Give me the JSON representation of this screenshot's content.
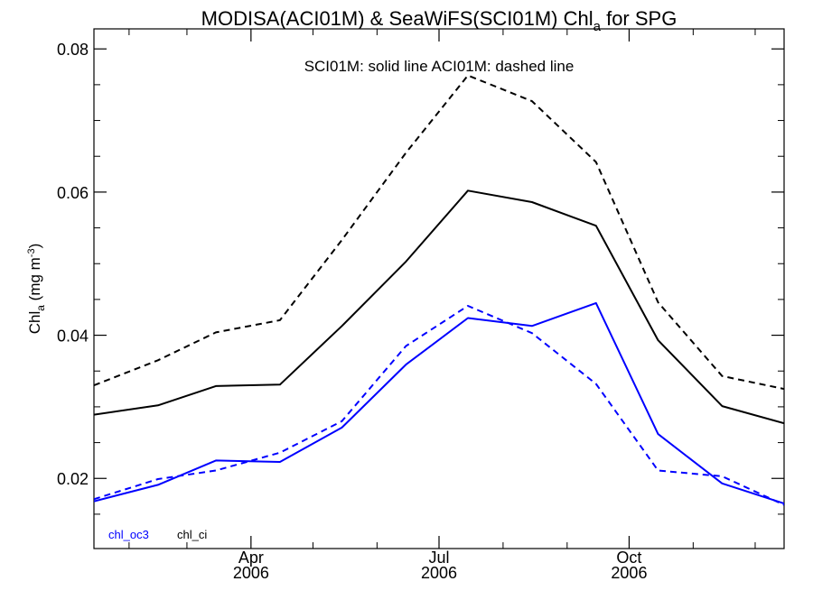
{
  "chart_data": {
    "type": "line",
    "title": {
      "main": "MODISA(ACI01M) & SeaWiFS(SCI01M)  Chl",
      "subscript": "a",
      "suffix": " for SPG"
    },
    "ylabel": {
      "pre": "Chl",
      "sub": "a",
      "mid": " (mg m",
      "sup": "-3",
      "post": ")"
    },
    "annotation": "SCI01M: solid line   ACI01M: dashed line",
    "ylim": [
      0.0102,
      0.0828
    ],
    "xlim": [
      "2006-01-15",
      "2006-12-15"
    ],
    "yticks": [
      0.02,
      0.04,
      0.06,
      0.08
    ],
    "ytick_labels": [
      "0.02",
      "0.04",
      "0.06",
      "0.08"
    ],
    "yminor_step": 0.005,
    "xticks": [
      {
        "date": "2006-04-01",
        "month": "Apr",
        "year": "2006"
      },
      {
        "date": "2006-07-01",
        "month": "Jul",
        "year": "2006"
      },
      {
        "date": "2006-10-01",
        "month": "Oct",
        "year": "2006"
      }
    ],
    "xminor_dates": [
      "2006-02-01",
      "2006-03-01",
      "2006-05-01",
      "2006-06-01",
      "2006-08-01",
      "2006-09-01",
      "2006-11-01",
      "2006-12-01"
    ],
    "x": [
      "2006-01-15",
      "2006-02-15",
      "2006-03-15",
      "2006-04-15",
      "2006-05-15",
      "2006-06-15",
      "2006-07-15",
      "2006-08-15",
      "2006-09-15",
      "2006-10-15",
      "2006-11-15",
      "2006-12-15"
    ],
    "legend": [
      {
        "label": "chl_oc3",
        "color": "#0000ff"
      },
      {
        "label": "chl_ci",
        "color": "#000000"
      }
    ],
    "series": [
      {
        "color": "#000000",
        "dash": false,
        "values": [
          0.0289,
          0.0302,
          0.0329,
          0.0331,
          0.0413,
          0.0503,
          0.0602,
          0.0586,
          0.0553,
          0.0393,
          0.0301,
          0.0277
        ]
      },
      {
        "color": "#000000",
        "dash": true,
        "values": [
          0.033,
          0.0365,
          0.0404,
          0.0421,
          0.0533,
          0.0655,
          0.0763,
          0.0727,
          0.0642,
          0.0446,
          0.0343,
          0.0325
        ]
      },
      {
        "color": "#0000ff",
        "dash": false,
        "values": [
          0.0168,
          0.0191,
          0.0225,
          0.0223,
          0.0271,
          0.0359,
          0.0424,
          0.0413,
          0.0445,
          0.0262,
          0.0193,
          0.0165
        ]
      },
      {
        "color": "#0000ff",
        "dash": true,
        "values": [
          0.0171,
          0.0199,
          0.0211,
          0.0236,
          0.028,
          0.0385,
          0.0441,
          0.0403,
          0.0332,
          0.0211,
          0.0203,
          0.0163
        ]
      }
    ],
    "grid": false
  }
}
